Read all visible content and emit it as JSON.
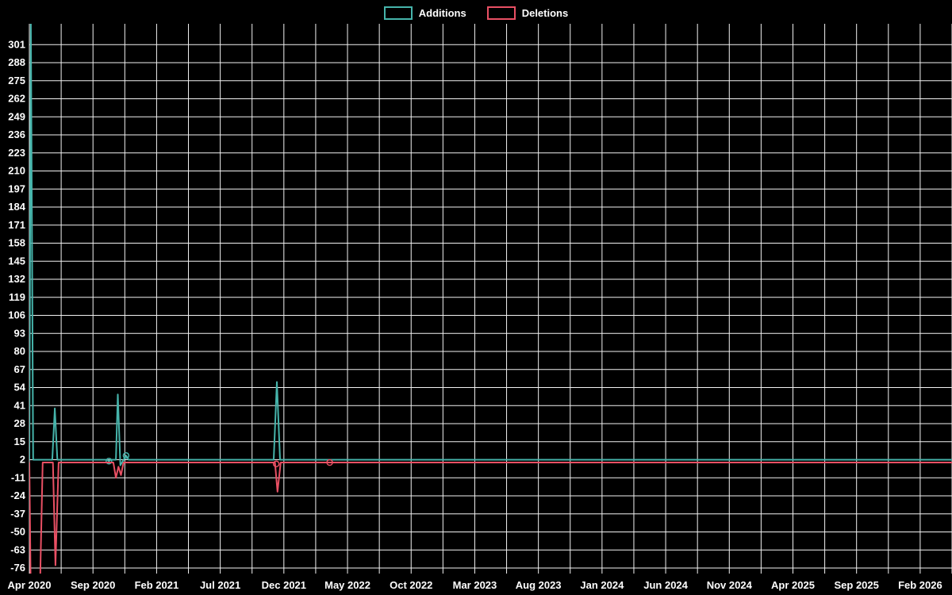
{
  "legend": {
    "additions": "Additions",
    "deletions": "Deletions"
  },
  "colors": {
    "background": "#000000",
    "grid": "#f2f2f2",
    "text": "#ffffff"
  },
  "chart_data": {
    "type": "line",
    "title": "",
    "legend_position": "top-center",
    "grid": true,
    "x_axis": {
      "labels": [
        "Apr 2020",
        "Sep 2020",
        "Feb 2021",
        "Jul 2021",
        "Dec 2021",
        "May 2022",
        "Oct 2022",
        "Mar 2023",
        "Aug 2023",
        "Jan 2024",
        "Jun 2024",
        "Nov 2024",
        "Apr 2025",
        "Sep 2025",
        "Feb 2026"
      ],
      "label_months": [
        0,
        5,
        10,
        15,
        20,
        25,
        30,
        35,
        40,
        45,
        50,
        55,
        60,
        65,
        70
      ],
      "domain_months": [
        0,
        72.5
      ],
      "grid_step_months": 2.5
    },
    "y_axis": {
      "ticks": [
        301,
        288,
        275,
        262,
        249,
        236,
        223,
        210,
        197,
        184,
        171,
        158,
        145,
        132,
        119,
        106,
        93,
        80,
        67,
        54,
        41,
        28,
        15,
        2,
        -11,
        -24,
        -37,
        -50,
        -63,
        -76
      ],
      "domain": [
        -80,
        316
      ]
    },
    "series": [
      {
        "name": "Additions",
        "color": "#46b4ab",
        "baseline": 2,
        "points": [
          [
            0,
            2
          ],
          [
            0.12,
            316
          ],
          [
            0.3,
            2
          ],
          [
            1.8,
            2
          ],
          [
            2.0,
            39
          ],
          [
            2.2,
            2
          ],
          [
            6.1,
            2
          ],
          [
            6.25,
            1
          ],
          [
            6.4,
            2
          ],
          [
            6.8,
            2
          ],
          [
            6.95,
            49
          ],
          [
            7.15,
            -2
          ],
          [
            7.6,
            5
          ],
          [
            7.8,
            2
          ],
          [
            19.2,
            2
          ],
          [
            19.45,
            58
          ],
          [
            19.7,
            2
          ],
          [
            72.5,
            2
          ]
        ],
        "markers": [
          [
            6.25,
            1
          ],
          [
            7.6,
            5
          ]
        ]
      },
      {
        "name": "Deletions",
        "color": "#e95064",
        "baseline": 0,
        "points": [
          [
            0,
            0
          ],
          [
            0.1,
            -85
          ],
          [
            0.85,
            -85
          ],
          [
            1.05,
            0
          ],
          [
            1.85,
            0
          ],
          [
            2.05,
            -74
          ],
          [
            2.3,
            0
          ],
          [
            6.6,
            0
          ],
          [
            6.8,
            -11
          ],
          [
            7.0,
            -3
          ],
          [
            7.2,
            -9
          ],
          [
            7.4,
            0
          ],
          [
            19.3,
            0
          ],
          [
            19.5,
            -21
          ],
          [
            19.75,
            0
          ],
          [
            72.5,
            0
          ]
        ],
        "markers": [
          [
            19.4,
            -1
          ],
          [
            23.6,
            0
          ]
        ]
      }
    ]
  }
}
